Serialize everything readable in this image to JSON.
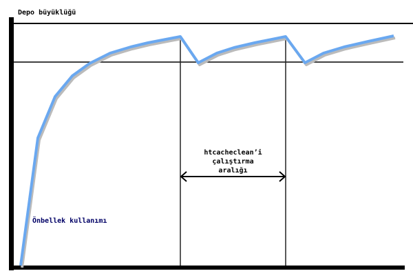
{
  "diagram": {
    "y_axis_label": "Depo büyüklüğü",
    "interval_label": [
      "htcacheclean’i",
      "çalıştırma",
      "aralığı"
    ],
    "curve_label": "Önbellek kullanımı",
    "colors": {
      "curve": "#6aa8f0",
      "axes": "#000000",
      "curve_label": "#000066"
    }
  }
}
